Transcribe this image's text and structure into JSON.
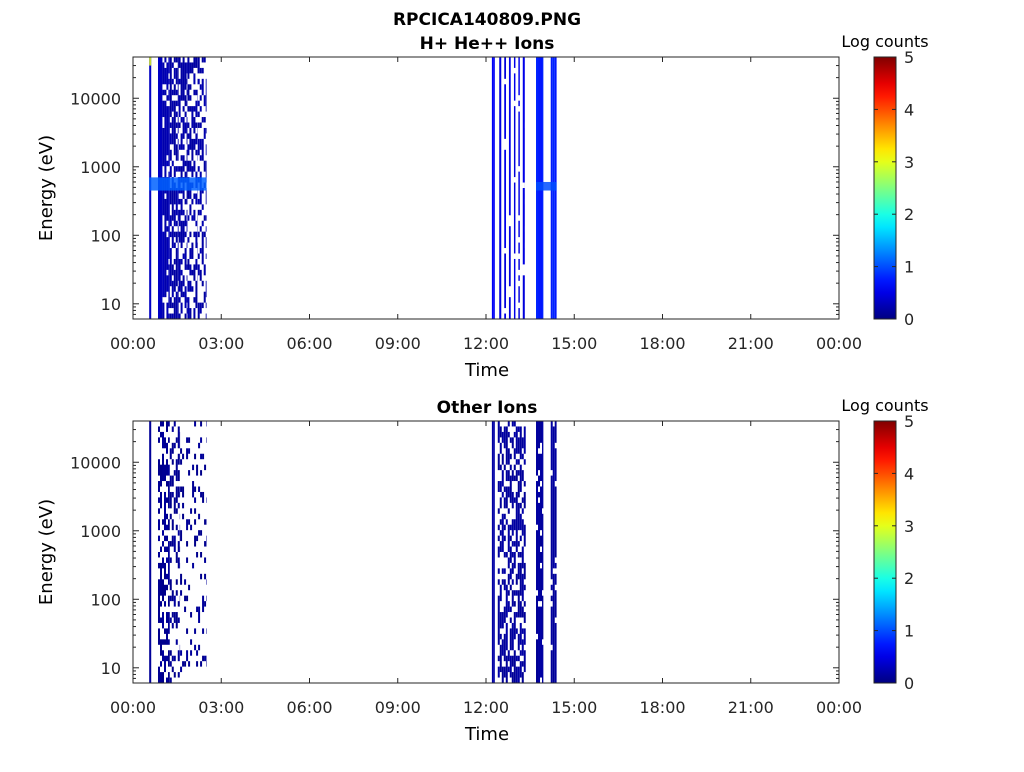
{
  "chart_data": [
    {
      "type": "heatmap",
      "title": "RPCICA140809.PNG",
      "subtitle": "H+ He++ Ions",
      "xlabel": "Time",
      "ylabel": "Energy (eV)",
      "x_ticks": [
        "00:00",
        "03:00",
        "06:00",
        "09:00",
        "12:00",
        "15:00",
        "18:00",
        "21:00",
        "00:00"
      ],
      "xlim_hours": [
        0,
        24
      ],
      "y_scale": "log",
      "y_ticks": [
        10,
        100,
        1000,
        10000
      ],
      "ylim": [
        6,
        40000
      ],
      "colorbar": {
        "label": "Log counts",
        "range": [
          0,
          5
        ],
        "ticks": [
          0,
          1,
          2,
          3,
          4,
          5
        ],
        "colormap": "jet"
      },
      "bands": [
        {
          "start": 0.55,
          "end": 0.62,
          "level": 0.3,
          "cover": 1.0
        },
        {
          "start": 0.85,
          "end": 1.0,
          "level": 0.3,
          "cover": 1.0
        },
        {
          "start": 1.0,
          "end": 1.25,
          "level": 0.25,
          "cover": 0.85
        },
        {
          "start": 1.25,
          "end": 1.55,
          "level": 0.2,
          "cover": 0.7
        },
        {
          "start": 1.55,
          "end": 1.85,
          "level": 0.2,
          "cover": 0.55
        },
        {
          "start": 1.85,
          "end": 2.2,
          "level": 0.2,
          "cover": 0.45
        },
        {
          "start": 2.2,
          "end": 2.5,
          "level": 0.2,
          "cover": 0.4
        },
        {
          "start": 12.2,
          "end": 12.3,
          "level": 0.6,
          "cover": 1.0
        },
        {
          "start": 12.45,
          "end": 12.52,
          "level": 0.5,
          "cover": 1.0
        },
        {
          "start": 12.62,
          "end": 12.68,
          "level": 0.5,
          "cover": 0.9
        },
        {
          "start": 12.78,
          "end": 12.84,
          "level": 0.5,
          "cover": 0.9
        },
        {
          "start": 12.95,
          "end": 13.0,
          "level": 0.5,
          "cover": 0.85
        },
        {
          "start": 13.1,
          "end": 13.15,
          "level": 0.5,
          "cover": 0.85
        },
        {
          "start": 13.25,
          "end": 13.32,
          "level": 0.5,
          "cover": 0.85
        },
        {
          "start": 13.7,
          "end": 13.95,
          "level": 0.75,
          "cover": 1.0
        },
        {
          "start": 14.2,
          "end": 14.4,
          "level": 0.75,
          "cover": 1.0
        }
      ],
      "highlights": [
        {
          "start": 0.55,
          "end": 2.5,
          "energy_low": 450,
          "energy_high": 700,
          "level": 1.1
        },
        {
          "start": 0.55,
          "end": 0.62,
          "energy_low": 30000,
          "energy_high": 40000,
          "level": 3.0
        },
        {
          "start": 13.7,
          "end": 14.4,
          "energy_low": 450,
          "energy_high": 600,
          "level": 1.0
        }
      ]
    },
    {
      "type": "heatmap",
      "title": "Other Ions",
      "xlabel": "Time",
      "ylabel": "Energy (eV)",
      "x_ticks": [
        "00:00",
        "03:00",
        "06:00",
        "09:00",
        "12:00",
        "15:00",
        "18:00",
        "21:00",
        "00:00"
      ],
      "xlim_hours": [
        0,
        24
      ],
      "y_scale": "log",
      "y_ticks": [
        10,
        100,
        1000,
        10000
      ],
      "ylim": [
        6,
        40000
      ],
      "colorbar": {
        "label": "Log counts",
        "range": [
          0,
          5
        ],
        "ticks": [
          0,
          1,
          2,
          3,
          4,
          5
        ],
        "colormap": "jet"
      },
      "bands": [
        {
          "start": 0.55,
          "end": 0.62,
          "level": 0.1,
          "cover": 1.0
        },
        {
          "start": 0.85,
          "end": 1.25,
          "level": 0.1,
          "cover": 0.55
        },
        {
          "start": 1.25,
          "end": 1.6,
          "level": 0.1,
          "cover": 0.35
        },
        {
          "start": 1.6,
          "end": 2.5,
          "level": 0.1,
          "cover": 0.15
        },
        {
          "start": 12.2,
          "end": 12.3,
          "level": 0.2,
          "cover": 1.0
        },
        {
          "start": 12.4,
          "end": 13.35,
          "level": 0.15,
          "cover": 0.6
        },
        {
          "start": 13.7,
          "end": 13.95,
          "level": 0.15,
          "cover": 0.9
        },
        {
          "start": 14.2,
          "end": 14.4,
          "level": 0.15,
          "cover": 0.9
        }
      ],
      "highlights": []
    }
  ]
}
